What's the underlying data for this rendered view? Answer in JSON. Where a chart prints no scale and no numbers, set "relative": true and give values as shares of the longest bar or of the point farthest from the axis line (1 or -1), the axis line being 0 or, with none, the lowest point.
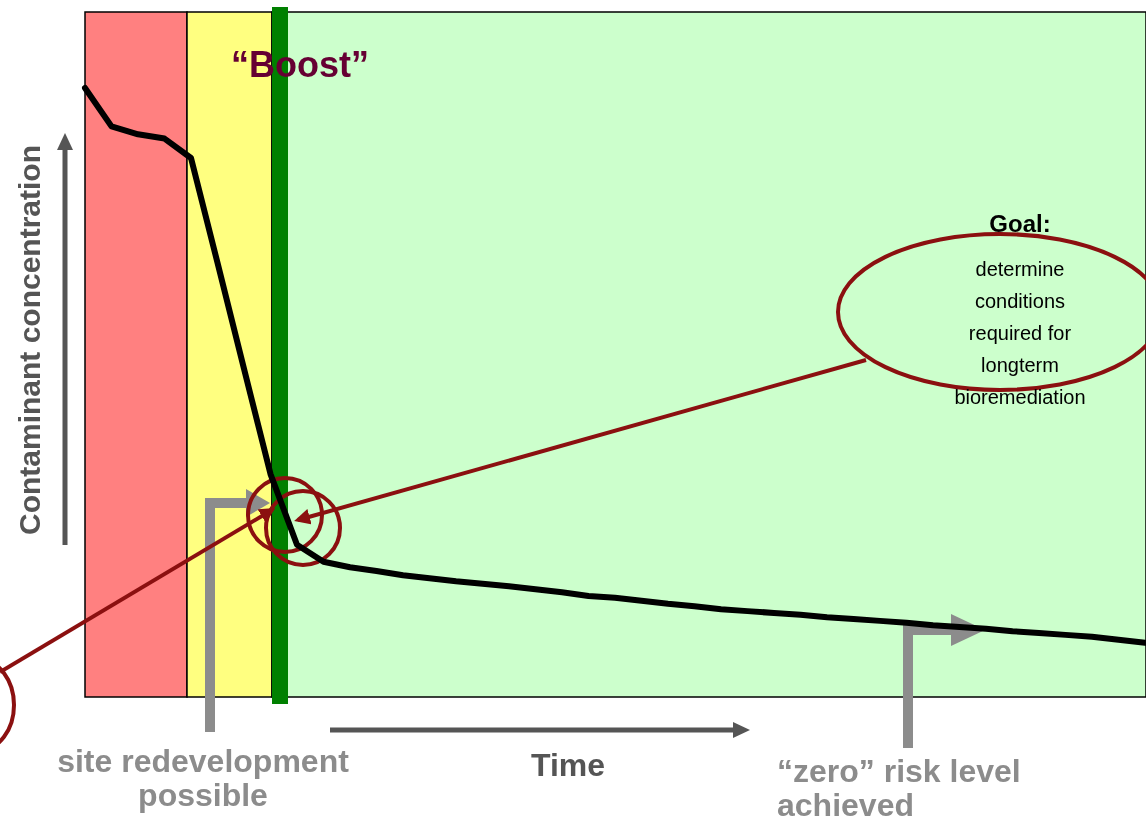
{
  "chart_data": {
    "type": "line",
    "xlabel": "Time",
    "ylabel": "Contaminant concentration",
    "relative": true,
    "line_style": "solid",
    "categories": [
      null,
      null,
      null,
      null,
      null,
      null,
      null,
      null,
      null,
      null,
      null,
      null,
      null,
      null,
      null,
      null,
      null,
      null,
      null,
      null,
      null,
      null,
      null,
      null,
      null,
      null,
      null,
      null,
      null,
      null,
      null,
      null,
      null,
      null,
      null,
      null,
      null,
      null,
      null,
      null,
      null
    ],
    "series": [
      {
        "color": "#000000",
        "values": [
          1,
          0.937,
          0.924,
          0.917,
          0.885,
          0.713,
          0.539,
          0.366,
          0.25,
          0.222,
          0.213,
          0.207,
          0.2,
          0.195,
          0.19,
          0.186,
          0.182,
          0.177,
          0.172,
          0.166,
          0.163,
          0.158,
          0.153,
          0.149,
          0.144,
          0.141,
          0.138,
          0.135,
          0.131,
          0.128,
          0.125,
          0.122,
          0.118,
          0.115,
          0.112,
          0.108,
          0.105,
          0.102,
          0.099,
          0.094,
          0.089
        ]
      }
    ],
    "annotations": [
      "“Boost”",
      "site redevelopment possible",
      "“zero” risk level achieved",
      "Goal:",
      "determine conditions required for longterm bioremediation"
    ]
  }
}
